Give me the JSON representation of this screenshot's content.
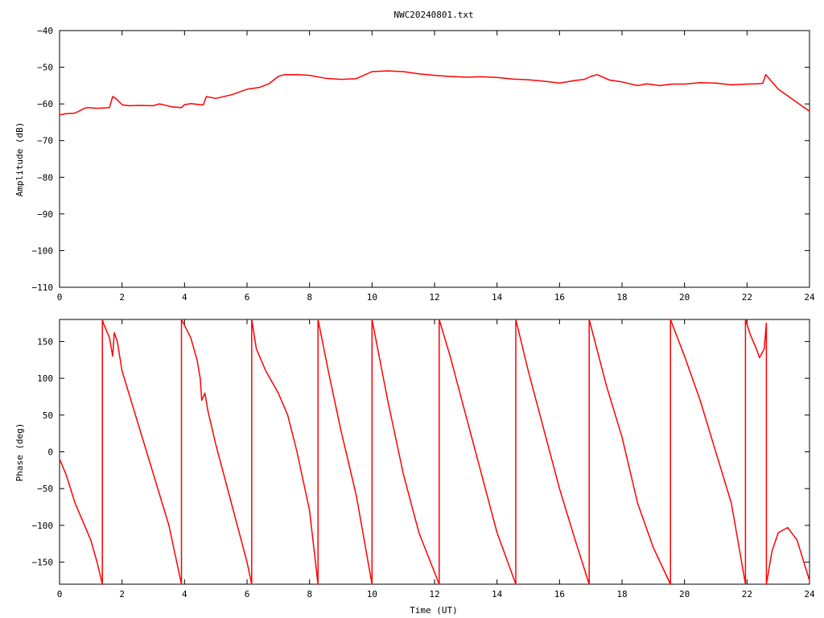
{
  "chart_data": [
    {
      "type": "line",
      "title": "NWC20240801.txt",
      "xlabel": "",
      "ylabel": "Amplitude (dB)",
      "xlim": [
        0,
        24
      ],
      "ylim": [
        -110,
        -40
      ],
      "xticks": [
        0,
        2,
        4,
        6,
        8,
        10,
        12,
        14,
        16,
        18,
        20,
        22,
        24
      ],
      "yticks": [
        -110,
        -100,
        -90,
        -80,
        -70,
        -60,
        -50,
        -40
      ],
      "grid": false,
      "series": [
        {
          "color": "#ff0000",
          "x": [
            0,
            0.2,
            0.5,
            0.8,
            0.9,
            1.2,
            1.6,
            1.7,
            1.8,
            2.0,
            2.2,
            2.6,
            3.0,
            3.2,
            3.6,
            3.9,
            4.0,
            4.2,
            4.6,
            4.7,
            5.0,
            5.5,
            6.0,
            6.4,
            6.7,
            7.0,
            7.2,
            7.6,
            8.0,
            8.5,
            9.0,
            9.5,
            10.0,
            10.5,
            11.0,
            11.5,
            12.0,
            12.5,
            13.0,
            13.5,
            14.0,
            14.5,
            15.0,
            15.5,
            16.0,
            16.5,
            16.8,
            17.0,
            17.2,
            17.6,
            18.0,
            18.5,
            18.8,
            19.2,
            19.6,
            20.0,
            20.5,
            21.0,
            21.5,
            22.0,
            22.3,
            22.5,
            22.6,
            22.8,
            23.0,
            23.5,
            24.0
          ],
          "values": [
            -63,
            -62.7,
            -62.5,
            -61.2,
            -61,
            -61.2,
            -61,
            -58,
            -58.5,
            -60.2,
            -60.5,
            -60.4,
            -60.5,
            -60,
            -60.8,
            -61,
            -60.2,
            -59.9,
            -60.3,
            -58,
            -58.5,
            -57.5,
            -56,
            -55.5,
            -54.5,
            -52.5,
            -52,
            -52,
            -52.2,
            -53,
            -53.3,
            -53.1,
            -51.2,
            -51,
            -51.2,
            -51.8,
            -52.2,
            -52.5,
            -52.7,
            -52.6,
            -52.8,
            -53.2,
            -53.4,
            -53.8,
            -54.3,
            -53.6,
            -53.3,
            -52.5,
            -52,
            -53.5,
            -54,
            -55,
            -54.5,
            -55,
            -54.6,
            -54.6,
            -54.2,
            -54.3,
            -54.8,
            -54.6,
            -54.5,
            -54.4,
            -52,
            -54,
            -56,
            -59,
            -62
          ]
        }
      ]
    },
    {
      "type": "line",
      "title": "",
      "xlabel": "Time (UT)",
      "ylabel": "Phase (deg)",
      "xlim": [
        0,
        24
      ],
      "ylim": [
        -180,
        180
      ],
      "xticks": [
        0,
        2,
        4,
        6,
        8,
        10,
        12,
        14,
        16,
        18,
        20,
        22,
        24
      ],
      "yticks": [
        -150,
        -100,
        -50,
        0,
        50,
        100,
        150
      ],
      "grid": false,
      "series": [
        {
          "color": "#ff0000",
          "x": [
            0,
            0.2,
            0.5,
            0.8,
            1.0,
            1.2,
            1.37,
            1.37,
            1.4,
            1.6,
            1.7,
            1.75,
            1.85,
            2.0,
            2.5,
            3.0,
            3.5,
            3.9,
            3.9,
            4.0,
            4.2,
            4.4,
            4.5,
            4.55,
            4.65,
            4.75,
            5.0,
            5.5,
            6.0,
            6.15,
            6.15,
            6.3,
            6.6,
            7.0,
            7.3,
            7.6,
            8.0,
            8.27,
            8.27,
            8.6,
            9.0,
            9.5,
            10.0,
            10.0,
            10.5,
            11.0,
            11.5,
            12.15,
            12.15,
            12.5,
            13.0,
            13.5,
            14.0,
            14.6,
            14.6,
            15.0,
            15.5,
            16.0,
            16.5,
            16.95,
            16.95,
            17.5,
            18.0,
            18.5,
            19.0,
            19.55,
            19.55,
            20.0,
            20.5,
            21.0,
            21.5,
            21.95,
            21.95,
            22.1,
            22.3,
            22.4,
            22.55,
            22.62,
            22.62,
            22.8,
            23.0,
            23.3,
            23.6,
            24.0
          ],
          "values": [
            -10,
            -30,
            -70,
            -100,
            -120,
            -150,
            -180,
            180,
            175,
            155,
            130,
            162,
            150,
            110,
            40,
            -30,
            -100,
            -180,
            180,
            172,
            155,
            125,
            100,
            70,
            80,
            55,
            10,
            -70,
            -150,
            -180,
            180,
            140,
            110,
            80,
            50,
            0,
            -80,
            -180,
            180,
            110,
            30,
            -60,
            -180,
            180,
            70,
            -30,
            -110,
            -180,
            180,
            130,
            50,
            -30,
            -110,
            -180,
            180,
            110,
            30,
            -50,
            -120,
            -180,
            180,
            90,
            20,
            -70,
            -130,
            -180,
            180,
            130,
            70,
            0,
            -70,
            -180,
            180,
            160,
            140,
            128,
            140,
            175,
            -180,
            -135,
            -110,
            -103,
            -120,
            -175
          ]
        }
      ]
    }
  ]
}
